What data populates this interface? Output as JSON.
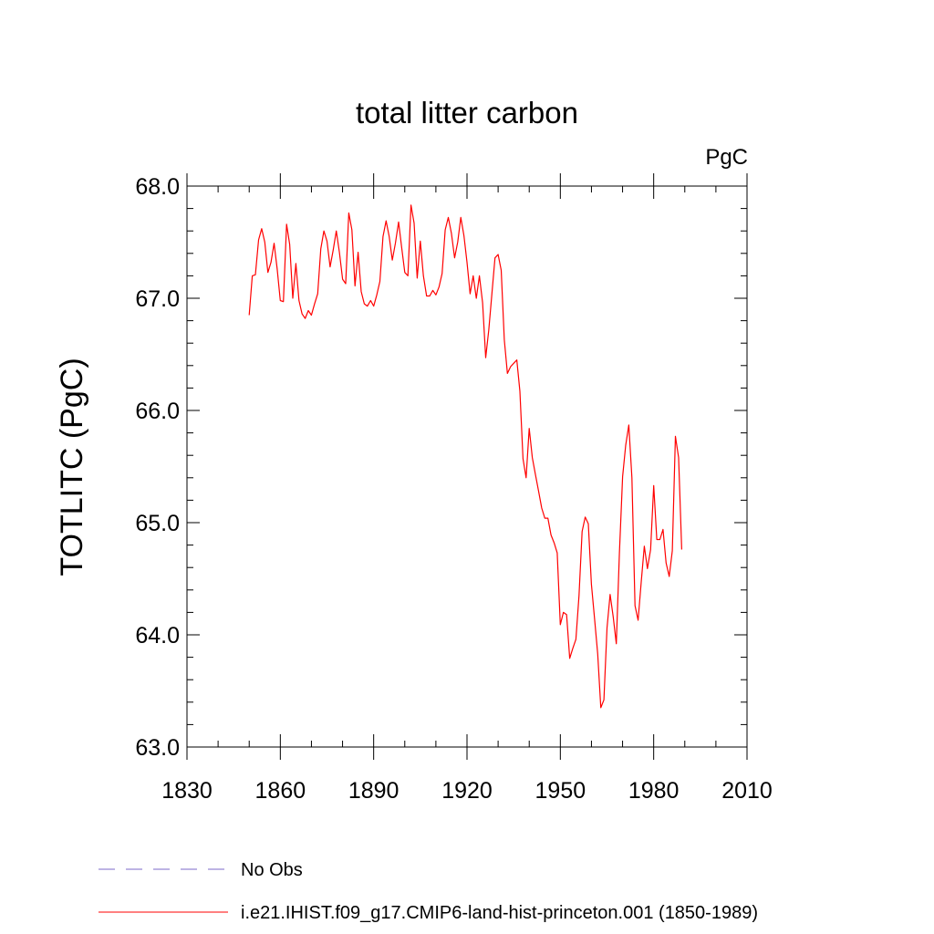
{
  "chart_data": {
    "type": "line",
    "title": "total litter carbon",
    "units_label": "PgC",
    "ylabel": "TOTLITC  (PgC)",
    "xlabel": "",
    "xlim": [
      1830,
      2010
    ],
    "ylim": [
      63.0,
      68.0
    ],
    "x_ticks": [
      "1830",
      "1860",
      "1890",
      "1920",
      "1950",
      "1980",
      "2010"
    ],
    "y_ticks": [
      "63.0",
      "64.0",
      "65.0",
      "66.0",
      "67.0",
      "68.0"
    ],
    "grid": false,
    "legend_position": "bottom-left",
    "legend": [
      {
        "label": "No Obs",
        "color": "#7b68c8",
        "style": "dashed"
      },
      {
        "label": "i.e21.IHIST.f09_g17.CMIP6-land-hist-princeton.001 (1850-1989)",
        "color": "#ff0000",
        "style": "solid"
      }
    ],
    "series": [
      {
        "name": "i.e21.IHIST.f09_g17.CMIP6-land-hist-princeton.001 (1850-1989)",
        "color": "#ff0000",
        "x": [
          1850,
          1851,
          1852,
          1853,
          1854,
          1855,
          1856,
          1857,
          1858,
          1859,
          1860,
          1861,
          1862,
          1863,
          1864,
          1865,
          1866,
          1867,
          1868,
          1869,
          1870,
          1871,
          1872,
          1873,
          1874,
          1875,
          1876,
          1877,
          1878,
          1879,
          1880,
          1881,
          1882,
          1883,
          1884,
          1885,
          1886,
          1887,
          1888,
          1889,
          1890,
          1891,
          1892,
          1893,
          1894,
          1895,
          1896,
          1897,
          1898,
          1899,
          1900,
          1901,
          1902,
          1903,
          1904,
          1905,
          1906,
          1907,
          1908,
          1909,
          1910,
          1911,
          1912,
          1913,
          1914,
          1915,
          1916,
          1917,
          1918,
          1919,
          1920,
          1921,
          1922,
          1923,
          1924,
          1925,
          1926,
          1927,
          1928,
          1929,
          1930,
          1931,
          1932,
          1933,
          1934,
          1935,
          1936,
          1937,
          1938,
          1939,
          1940,
          1941,
          1942,
          1943,
          1944,
          1945,
          1946,
          1947,
          1948,
          1949,
          1950,
          1951,
          1952,
          1953,
          1954,
          1955,
          1956,
          1957,
          1958,
          1959,
          1960,
          1961,
          1962,
          1963,
          1964,
          1965,
          1966,
          1967,
          1968,
          1969,
          1970,
          1971,
          1972,
          1973,
          1974,
          1975,
          1976,
          1977,
          1978,
          1979,
          1980,
          1981,
          1982,
          1983,
          1984,
          1985,
          1986,
          1987,
          1988,
          1989
        ],
        "values": [
          66.85,
          67.2,
          67.21,
          67.52,
          67.62,
          67.5,
          67.23,
          67.32,
          67.49,
          67.26,
          66.98,
          66.97,
          67.66,
          67.48,
          67.0,
          67.31,
          66.98,
          66.86,
          66.82,
          66.89,
          66.85,
          66.95,
          67.04,
          67.44,
          67.6,
          67.51,
          67.28,
          67.43,
          67.6,
          67.41,
          67.17,
          67.13,
          67.76,
          67.61,
          67.11,
          67.41,
          67.06,
          66.95,
          66.93,
          66.98,
          66.93,
          67.03,
          67.15,
          67.55,
          67.69,
          67.55,
          67.34,
          67.49,
          67.68,
          67.45,
          67.23,
          67.2,
          67.83,
          67.67,
          67.18,
          67.51,
          67.2,
          67.02,
          67.02,
          67.07,
          67.03,
          67.1,
          67.22,
          67.61,
          67.72,
          67.58,
          67.36,
          67.5,
          67.72,
          67.56,
          67.32,
          67.04,
          67.2,
          67.0,
          67.2,
          66.96,
          66.47,
          66.72,
          67.04,
          67.36,
          67.39,
          67.25,
          66.63,
          66.33,
          66.39,
          66.42,
          66.45,
          66.17,
          65.57,
          65.4,
          65.84,
          65.58,
          65.43,
          65.28,
          65.13,
          65.04,
          65.04,
          64.89,
          64.82,
          64.73,
          64.09,
          64.2,
          64.18,
          63.79,
          63.88,
          63.96,
          64.35,
          64.92,
          65.05,
          64.99,
          64.45,
          64.14,
          63.83,
          63.35,
          63.42,
          64.06,
          64.36,
          64.16,
          63.92,
          64.73,
          65.41,
          65.69,
          65.87,
          65.4,
          64.26,
          64.13,
          64.47,
          64.79,
          64.59,
          64.76,
          65.33,
          64.85,
          64.85,
          64.94,
          64.64,
          64.52,
          64.75,
          65.77,
          65.58,
          64.76
        ]
      }
    ]
  }
}
